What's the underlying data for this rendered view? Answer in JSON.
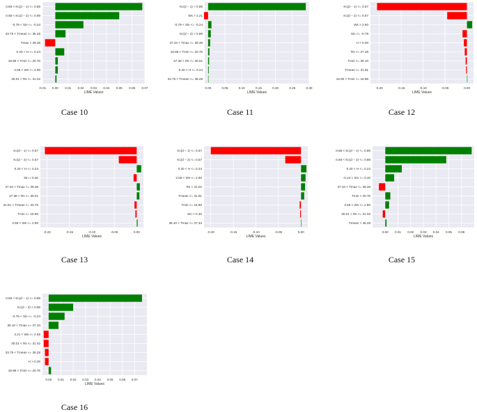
{
  "figure": {
    "green_color": "#008000",
    "red_color": "#ff0000",
    "panel_bg": "#eaeaf2",
    "grid_color": "#ffffff",
    "text_color": "#333333"
  },
  "chart_data": [
    {
      "type": "bar",
      "orientation": "horizontal",
      "caption": "Case 10",
      "xlabel": "LIME Values",
      "xlim": [
        -0.01,
        0.07
      ],
      "xticks": [
        -0.01,
        0.0,
        0.01,
        0.02,
        0.03,
        0.04,
        0.05,
        0.06,
        0.07
      ],
      "xtick_labels": [
        "-0.01",
        "0.00",
        "0.01",
        "0.02",
        "0.03",
        "0.04",
        "0.05",
        "0.06",
        "0.07"
      ],
      "categories": [
        "0.68 < Kc(d − 1) <= 0.89",
        "0.68 < Kc(d − 2) <= 0.89",
        "-0.79 < Sin <= -0.24",
        "33.75 < Tmean <= 35.28",
        "Tmax > 39.36",
        "0.20 < H <= 0.24",
        "18.98 < Tmin <= 20.76",
        "2.58 < Ws <= 2.90",
        "30.01 < Rs <= 31.02"
      ],
      "values": [
        0.068,
        0.05,
        0.022,
        0.008,
        -0.008,
        0.007,
        0.002,
        0.002,
        0.001
      ]
    },
    {
      "type": "bar",
      "orientation": "horizontal",
      "caption": "Case 11",
      "xlabel": "LIME Values",
      "xlim": [
        -0.01,
        0.3
      ],
      "xticks": [
        0.0,
        0.05,
        0.1,
        0.15,
        0.2,
        0.25,
        0.3
      ],
      "xtick_labels": [
        "0.00",
        "0.05",
        "0.10",
        "0.15",
        "0.20",
        "0.25",
        "0.30"
      ],
      "categories": [
        "Kc(d − 1) > 0.89",
        "Ws > 2.21",
        "-0.79 < Sin <= -0.24",
        "Kc(d − 2) > 0.89",
        "37.34 < Tmax <= 39.36",
        "18.98 < Tmin <= 20.76",
        "27.38 < Rs <= 30.01",
        "0.20 < H <= 0.24",
        "33.75 < Tmean <= 35.28"
      ],
      "values": [
        0.29,
        -0.012,
        0.01,
        0.008,
        0.006,
        0.004,
        0.003,
        0.002,
        0.001
      ]
    },
    {
      "type": "bar",
      "orientation": "horizontal",
      "caption": "Case 12",
      "xlabel": "LIME Values",
      "xlim": [
        -0.22,
        0.015
      ],
      "xticks": [
        -0.2,
        -0.15,
        -0.1,
        -0.05,
        0.0
      ],
      "xtick_labels": [
        "-0.20",
        "-0.15",
        "-0.10",
        "-0.05",
        "0.00"
      ],
      "categories": [
        "Kc(d − 1) <= 0.57",
        "Kc(d − 2) <= 0.57",
        "Ws > 2.90",
        "Sin <= -0.79",
        "H > 0.30",
        "Rs <= 27.38",
        "Tmin <= 35.10",
        "Tmean <= 31.91",
        "15.90 < Tmin <= 18.98"
      ],
      "values": [
        -0.205,
        -0.045,
        0.012,
        -0.01,
        -0.007,
        -0.005,
        -0.003,
        -0.002,
        0.001
      ]
    },
    {
      "type": "bar",
      "orientation": "horizontal",
      "caption": "Case 13",
      "xlabel": "LIME Values",
      "xlim": [
        -0.215,
        0.015
      ],
      "xticks": [
        -0.2,
        -0.15,
        -0.1,
        -0.05,
        0.0
      ],
      "xtick_labels": [
        "-0.20",
        "-0.15",
        "-0.10",
        "-0.05",
        "0.00"
      ],
      "categories": [
        "Kc(d − 1) <= 0.57",
        "Kc(d − 2) <= 0.57",
        "0.20 < H <= 0.24",
        "Sin > 0.40",
        "37.34 < Tmax <= 39.36",
        "27.38 < Rs <= 30.01",
        "31.91 < Tmean <= 33.75",
        "Tmin <= 15.90",
        "2.58 < Ws <= 2.90"
      ],
      "values": [
        -0.205,
        -0.04,
        0.01,
        -0.007,
        0.007,
        0.006,
        -0.005,
        -0.003,
        0.002
      ]
    },
    {
      "type": "bar",
      "orientation": "horizontal",
      "caption": "Case 14",
      "xlabel": "LIME Values",
      "xlim": [
        -0.215,
        0.015
      ],
      "xticks": [
        -0.2,
        -0.15,
        -0.1,
        -0.05,
        0.0
      ],
      "xtick_labels": [
        "-0.20",
        "-0.15",
        "-0.10",
        "-0.05",
        "0.00"
      ],
      "categories": [
        "Kc(d − 1) <= 0.57",
        "Kc(d − 2) <= 0.57",
        "0.20 < H <= 0.24",
        "2.58 < Ws <= 2.90",
        "Rs > 31.02",
        "Tmean <= 31.91",
        "Tmin <= 15.90",
        "Sin > 0.40",
        "35.10 < Tmax <= 37.34"
      ],
      "values": [
        -0.2,
        -0.035,
        0.012,
        0.01,
        0.009,
        0.007,
        -0.003,
        -0.002,
        0.001
      ]
    },
    {
      "type": "bar",
      "orientation": "horizontal",
      "caption": "Case 15",
      "xlabel": "LIME Values",
      "xlim": [
        -0.01,
        0.07
      ],
      "xticks": [
        0.0,
        0.01,
        0.02,
        0.03,
        0.04,
        0.05,
        0.06
      ],
      "xtick_labels": [
        "0.00",
        "0.01",
        "0.02",
        "0.03",
        "0.04",
        "0.05",
        "0.06"
      ],
      "categories": [
        "0.68 < Kc(d − 1) <= 0.89",
        "0.68 < Kc(d − 2) <= 0.89",
        "0.20 < H <= 0.24",
        "-0.24 < Sin <= 0.40",
        "37.34 < Tmax <= 39.36",
        "Tmin > 20.76",
        "2.58 < Ws <= 2.90",
        "30.01 < Rs <= 31.02",
        "Tmean > 35.28"
      ],
      "values": [
        0.068,
        0.048,
        0.013,
        0.007,
        -0.005,
        0.004,
        0.003,
        -0.002,
        0.001
      ]
    },
    {
      "type": "bar",
      "orientation": "horizontal",
      "caption": "Case 16",
      "xlabel": "LIME Values",
      "xlim": [
        -0.005,
        0.08
      ],
      "xticks": [
        0.0,
        0.01,
        0.02,
        0.03,
        0.04,
        0.05,
        0.06,
        0.07
      ],
      "xtick_labels": [
        "0.00",
        "0.01",
        "0.02",
        "0.03",
        "0.04",
        "0.05",
        "0.06",
        "0.07"
      ],
      "categories": [
        "0.68 < Kc(d − 1) <= 0.89",
        "Kc(d − 2) > 0.89",
        "-0.79 < Sin <= -0.24",
        "35.10 < Tmax <= 37.34",
        "2.21 < Ws <= 2.58",
        "30.01 < Rs <= 31.02",
        "33.75 < Tmean <= 35.28",
        "H > 0.30",
        "18.98 < Tmin <= 20.76"
      ],
      "values": [
        0.076,
        0.02,
        0.013,
        0.008,
        -0.004,
        -0.004,
        -0.003,
        -0.003,
        0.002
      ]
    }
  ]
}
